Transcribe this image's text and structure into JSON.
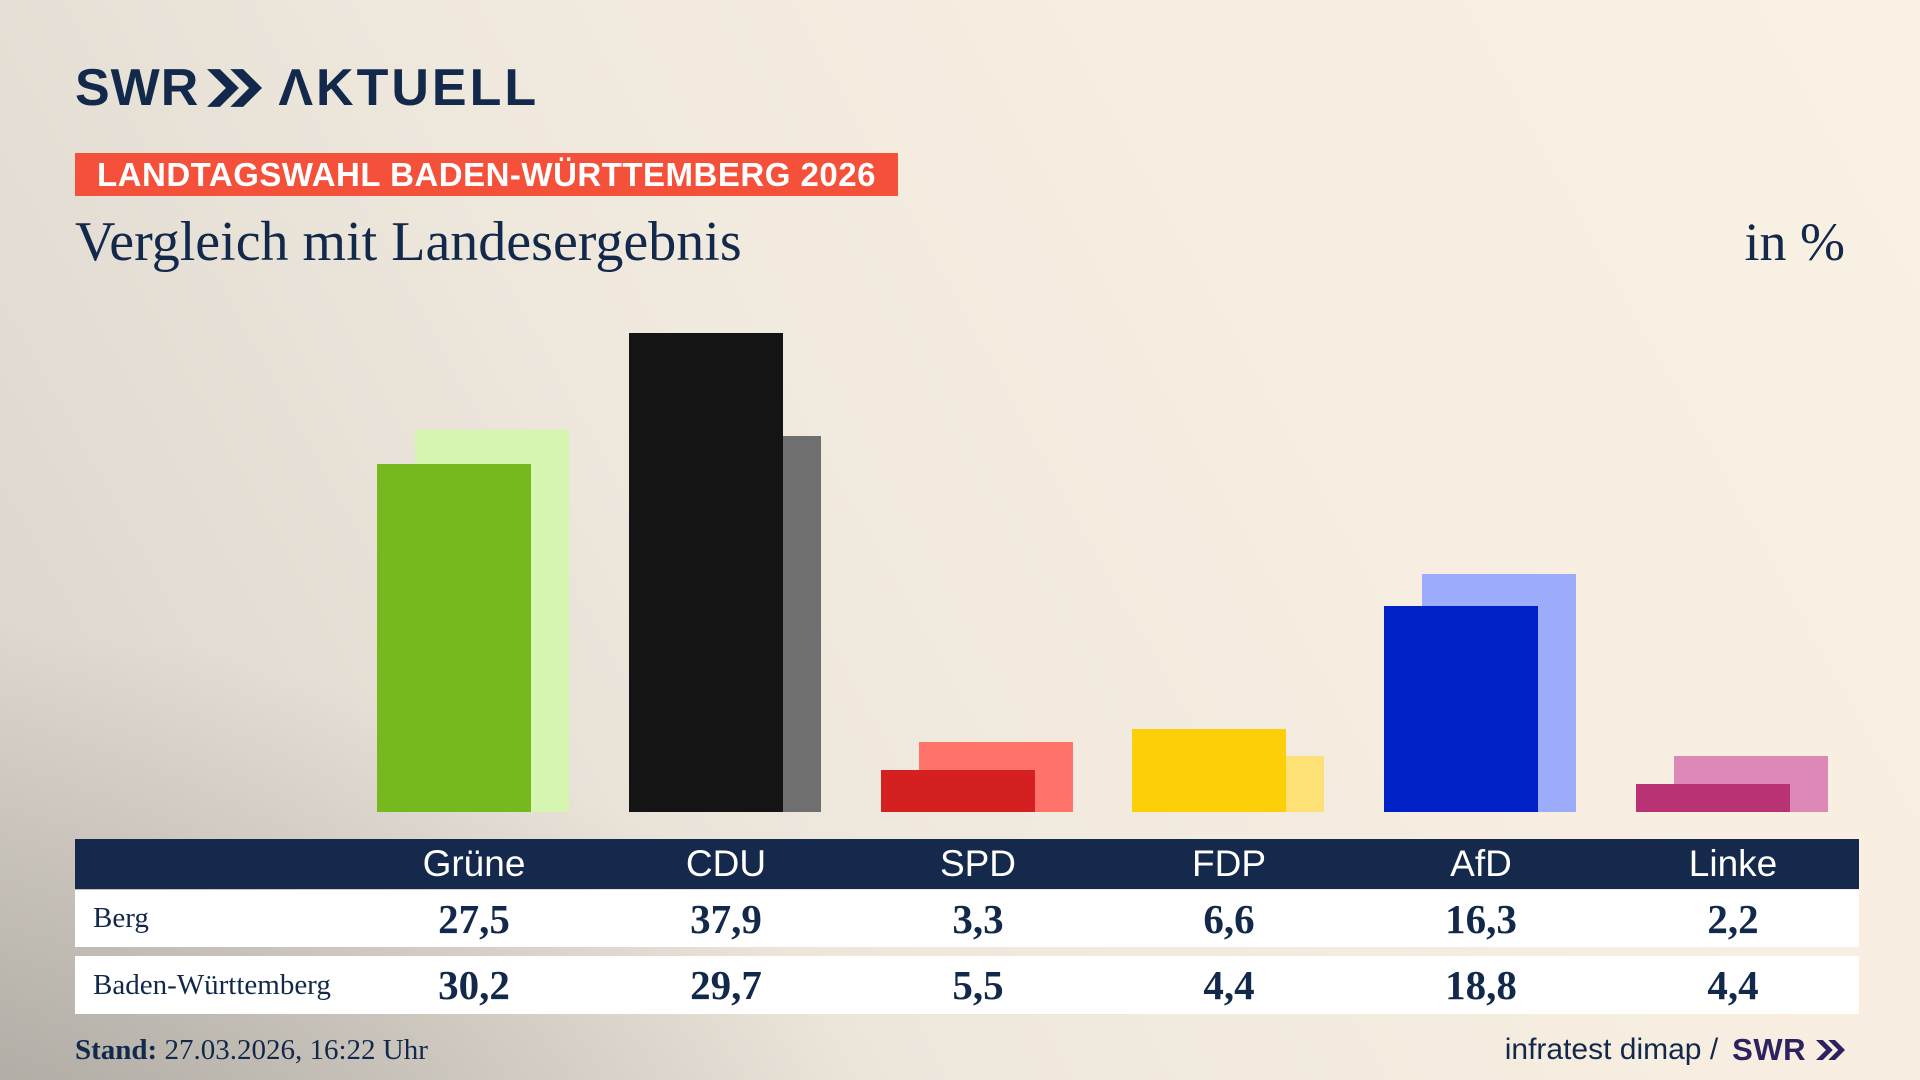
{
  "header": {
    "logo_brand": "SWR",
    "logo_suffix": "ΛKTUELL",
    "badge": "LANDTAGSWAHL BADEN-WÜRTTEMBERG 2026",
    "title": "Vergleich mit Landesergebnis",
    "unit_label": "in %"
  },
  "chart_data": {
    "type": "bar",
    "title": "Vergleich mit Landesergebnis",
    "unit": "in %",
    "categories": [
      "Grüne",
      "CDU",
      "SPD",
      "FDP",
      "AfD",
      "Linke"
    ],
    "series": [
      {
        "name": "Berg",
        "values": [
          27.5,
          37.9,
          3.3,
          6.6,
          16.3,
          2.2
        ],
        "colors": [
          "#76b91e",
          "#141414",
          "#d42020",
          "#fdcf08",
          "#0021c6",
          "#b93274"
        ]
      },
      {
        "name": "Baden-Württemberg",
        "values": [
          30.2,
          29.7,
          5.5,
          4.4,
          18.8,
          4.4
        ],
        "colors": [
          "#d6f5b0",
          "#6f6f6f",
          "#ff736b",
          "#fee176",
          "#9cabfa",
          "#dc89b7"
        ]
      }
    ],
    "value_decimals": 1,
    "decimal_separator": ",",
    "ylim": [
      0,
      40
    ],
    "grid": false,
    "legend": "table-below-chart",
    "bar_style": "overlapping-pairs, front=Berg, back=Baden-Württemberg offset right"
  },
  "footer": {
    "stand_label": "Stand:",
    "stand_value": " 27.03.2026, 16:22 Uhr",
    "source_text": "infratest dimap /",
    "source_brand": "SWR"
  },
  "colors": {
    "navy": "#13294b",
    "badge_red": "#f4503a",
    "table_header_bg": "#14294b",
    "footer_brand_purple": "#2e2160",
    "background_cream": "#faf1e5",
    "background_gray": "#d8d2c9"
  }
}
